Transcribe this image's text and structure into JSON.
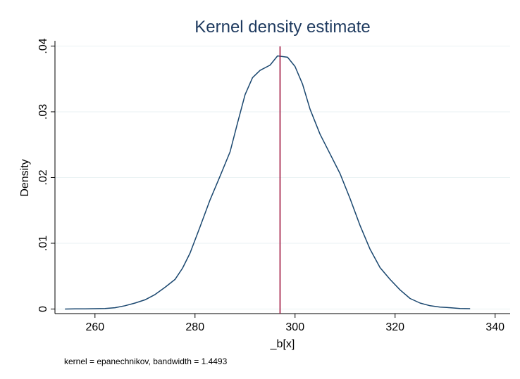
{
  "chart_data": {
    "type": "line",
    "title": "Kernel density estimate",
    "xlabel": "_b[x]",
    "ylabel": "Density",
    "note": "kernel = epanechnikov, bandwidth = 1.4493",
    "xlim": [
      252,
      343
    ],
    "ylim": [
      -0.0007,
      0.0408
    ],
    "xticks": [
      260,
      280,
      300,
      320,
      340
    ],
    "xtick_labels": [
      "260",
      "280",
      "300",
      "320",
      "340"
    ],
    "yticks": [
      0,
      0.01,
      0.02,
      0.03,
      0.04
    ],
    "ytick_labels": [
      "0",
      ".01",
      ".02",
      ".03",
      ".04"
    ],
    "grid": true,
    "reference_line": {
      "x": 297
    },
    "series": [
      {
        "x": [
          254,
          256,
          258,
          260,
          262,
          264,
          266,
          268,
          270,
          272,
          274,
          276,
          277.5,
          279,
          281,
          283,
          285,
          287,
          288.5,
          290,
          291.5,
          293,
          295,
          296.5,
          298.5,
          300,
          301.5,
          303,
          305,
          307,
          309,
          311,
          313,
          315,
          317,
          319,
          321,
          323,
          325,
          327,
          329,
          331,
          333,
          335
        ],
        "values": [
          0.0,
          3e-05,
          3e-05,
          5e-05,
          8e-05,
          0.0002,
          0.0005,
          0.0009,
          0.0014,
          0.0022,
          0.0033,
          0.0045,
          0.0062,
          0.0085,
          0.0125,
          0.0166,
          0.0202,
          0.0239,
          0.0283,
          0.0326,
          0.0352,
          0.0363,
          0.0371,
          0.0385,
          0.0383,
          0.0369,
          0.0342,
          0.0304,
          0.0266,
          0.0236,
          0.0206,
          0.0168,
          0.0127,
          0.0091,
          0.0063,
          0.0045,
          0.0029,
          0.0016,
          0.0009,
          0.0005,
          0.0003,
          0.0002,
          8e-05,
          5e-05
        ]
      }
    ],
    "colors": {
      "line": "#1a476f",
      "reference": "#a0153e",
      "grid": "#eaf2f3",
      "axis": "#000000",
      "title": "#1e3a5f",
      "background": "#ffffff"
    }
  }
}
